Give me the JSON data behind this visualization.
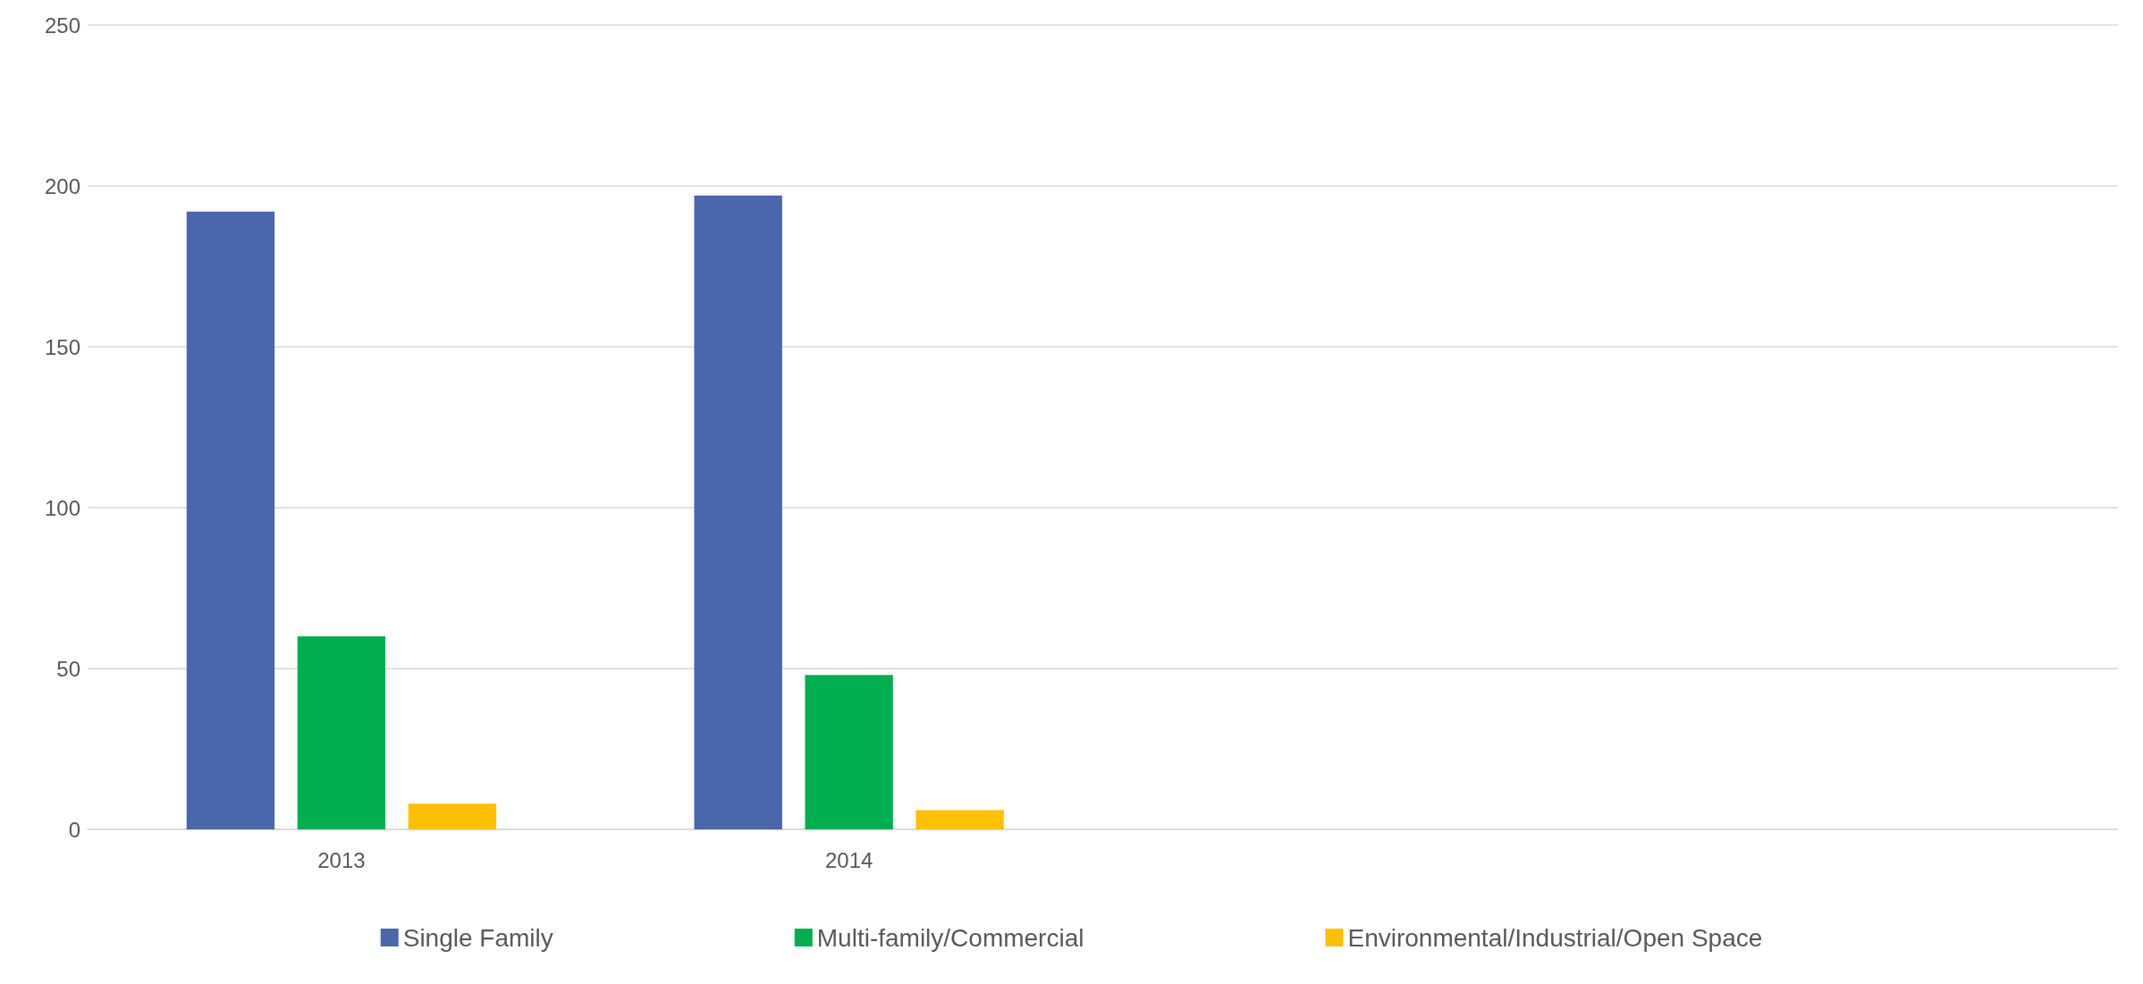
{
  "chart_data": {
    "type": "bar",
    "categories": [
      "2013",
      "2014",
      null,
      null
    ],
    "series": [
      {
        "name": "Single Family",
        "color": "#4a66ac",
        "values": [
          192,
          197,
          null,
          null
        ]
      },
      {
        "name": "Multi-family/Commercial",
        "color": "#00b050",
        "values": [
          60,
          48,
          null,
          null
        ]
      },
      {
        "name": "Environmental/Industrial/Open Space",
        "color": "#ffc000",
        "values": [
          8,
          6,
          null,
          null
        ]
      }
    ],
    "ylim": [
      0,
      250
    ],
    "yticks": [
      0,
      50,
      100,
      150,
      200,
      250
    ],
    "grid": "y",
    "legend": "bottom"
  }
}
